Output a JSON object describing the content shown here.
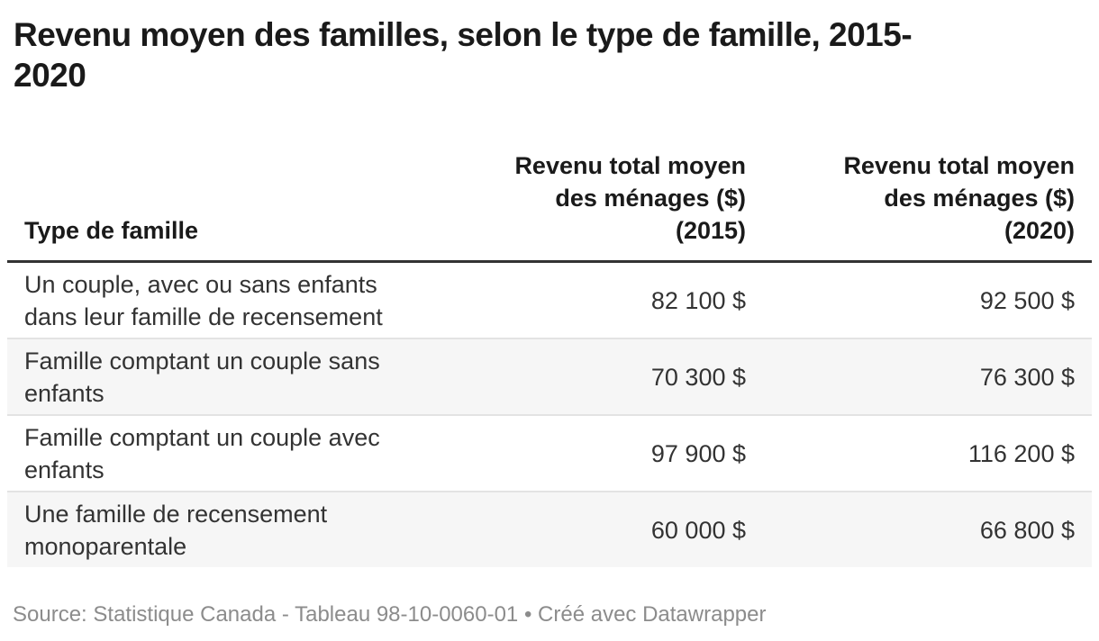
{
  "title": "Revenu moyen des familles, selon le type de famille, 2015-\n2020",
  "table": {
    "columns": [
      {
        "label": "Type de famille",
        "align": "left"
      },
      {
        "label": "Revenu total moyen\ndes ménages ($)\n(2015)",
        "align": "right"
      },
      {
        "label": "Revenu total moyen\ndes ménages ($)\n(2020)",
        "align": "right"
      }
    ],
    "rows": [
      {
        "type": "Un couple, avec ou sans enfants\ndans leur famille de recensement",
        "y2015": "82 100 $",
        "y2020": "92 500 $"
      },
      {
        "type": "Famille comptant un couple sans\nenfants",
        "y2015": "70 300 $",
        "y2020": "76 300 $"
      },
      {
        "type": "Famille comptant un couple avec\nenfants",
        "y2015": "97 900 $",
        "y2020": "116 200 $"
      },
      {
        "type": "Une famille de recensement\nmonoparentale",
        "y2015": "60 000 $",
        "y2020": "66 800 $"
      }
    ]
  },
  "footer": {
    "source_label": "Source:",
    "source_text": "Statistique Canada - Tableau 98-10-0060-01",
    "separator": "•",
    "credit": "Créé avec Datawrapper"
  },
  "colors": {
    "title_text": "#1a1a1a",
    "body_text": "#333333",
    "header_rule": "#333333",
    "row_divider": "#e3e3e3",
    "row_stripe": "#f6f6f6",
    "footer_text": "#8c8c8c"
  },
  "chart_data": {
    "type": "table",
    "title": "Revenu moyen des familles, selon le type de famille, 2015-2020",
    "categories": [
      "Un couple, avec ou sans enfants dans leur famille de recensement",
      "Famille comptant un couple sans enfants",
      "Famille comptant un couple avec enfants",
      "Une famille de recensement monoparentale"
    ],
    "series": [
      {
        "name": "Revenu total moyen des ménages ($) (2015)",
        "values": [
          82100,
          70300,
          97900,
          60000
        ]
      },
      {
        "name": "Revenu total moyen des ménages ($) (2020)",
        "values": [
          92500,
          76300,
          116200,
          66800
        ]
      }
    ],
    "value_format": "fr-CA currency, e.g. 82 100 $",
    "source": "Statistique Canada - Tableau 98-10-0060-01",
    "credit": "Créé avec Datawrapper",
    "layout": {
      "striped_rows": true,
      "header_rule": true,
      "numeric_columns_right_aligned": true
    }
  }
}
